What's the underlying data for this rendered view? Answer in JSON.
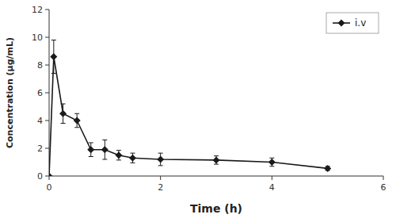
{
  "chart_data": {
    "type": "line",
    "x": [
      0,
      0.083,
      0.25,
      0.5,
      0.75,
      1.0,
      1.25,
      1.5,
      2.0,
      3.0,
      4.0,
      5.0
    ],
    "series": [
      {
        "name": "i.v",
        "color": "#1a1a1a",
        "marker": "diamond",
        "line_style": "solid",
        "values": [
          0,
          8.6,
          4.5,
          4.0,
          1.9,
          1.9,
          1.5,
          1.3,
          1.2,
          1.15,
          1.0,
          0.55
        ],
        "errors": [
          0,
          1.2,
          0.7,
          0.5,
          0.5,
          0.7,
          0.35,
          0.35,
          0.45,
          0.3,
          0.3,
          0.15
        ]
      }
    ],
    "xlabel": "Time (h)",
    "ylabel": "Concentration (μg/mL)",
    "xlim": [
      0,
      6
    ],
    "ylim": [
      0,
      12
    ],
    "xticks": [
      0,
      2,
      4,
      6
    ],
    "yticks": [
      0,
      2,
      4,
      6,
      8,
      10,
      12
    ],
    "grid": false,
    "legend": "upper right"
  }
}
